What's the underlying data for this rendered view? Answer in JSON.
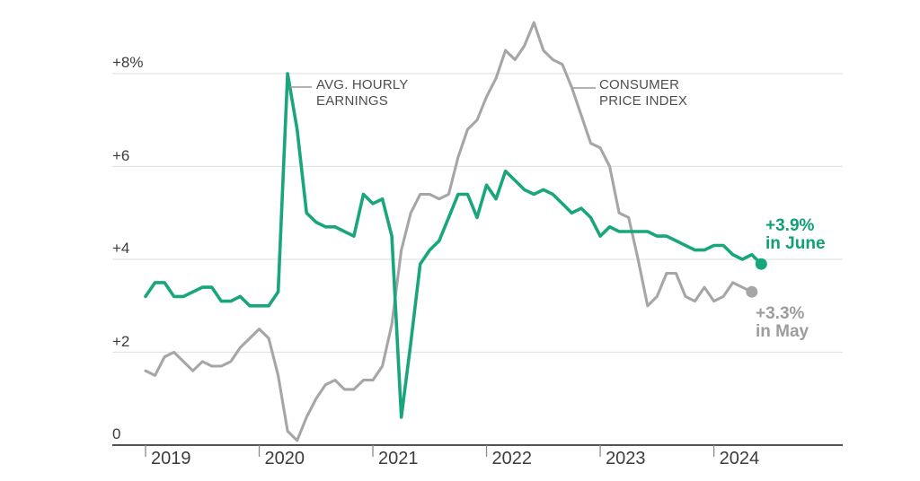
{
  "chart_data": {
    "type": "line",
    "title": "",
    "x_unit": "month",
    "x_start": "2019-01",
    "grid": true,
    "ylim": [
      0,
      9.5
    ],
    "yticks": [
      {
        "value": 8,
        "label": "+8%"
      },
      {
        "value": 6,
        "label": "+6"
      },
      {
        "value": 4,
        "label": "+4"
      },
      {
        "value": 2,
        "label": "+2"
      },
      {
        "value": 0,
        "label": "0"
      }
    ],
    "xticks": [
      "2019",
      "2020",
      "2021",
      "2022",
      "2023",
      "2024"
    ],
    "colors": {
      "background": "#ffffff",
      "grid": "#e3e3e3",
      "axis": "#1a1a1a",
      "tick": "#8a8a8a",
      "tick_text": "#3c3c3c",
      "annotation_text": "#4e4e4e",
      "leader": "#999999"
    },
    "series": [
      {
        "name": "Avg. hourly earnings (YoY %)",
        "label_lines": [
          "AVG. HOURLY",
          "EARNINGS"
        ],
        "line_color": "#1aa67d",
        "label_color": "#0fa077",
        "end_label": [
          "+3.9%",
          "in June"
        ],
        "values": [
          3.2,
          3.5,
          3.5,
          3.2,
          3.2,
          3.3,
          3.4,
          3.4,
          3.1,
          3.1,
          3.2,
          3.0,
          3.0,
          3.0,
          3.3,
          8.0,
          6.8,
          5.0,
          4.8,
          4.7,
          4.7,
          4.6,
          4.5,
          5.4,
          5.2,
          5.3,
          4.5,
          0.6,
          2.2,
          3.9,
          4.2,
          4.4,
          4.9,
          5.4,
          5.4,
          4.9,
          5.6,
          5.3,
          5.9,
          5.7,
          5.5,
          5.4,
          5.5,
          5.4,
          5.2,
          5.0,
          5.1,
          4.9,
          4.5,
          4.7,
          4.6,
          4.6,
          4.6,
          4.6,
          4.5,
          4.5,
          4.4,
          4.3,
          4.2,
          4.2,
          4.3,
          4.3,
          4.1,
          4.0,
          4.1,
          3.9
        ]
      },
      {
        "name": "Consumer Price Index (YoY %)",
        "label_lines": [
          "CONSUMER",
          "PRICE INDEX"
        ],
        "line_color": "#a6a6a6",
        "label_color": "#9d9d9d",
        "end_label": [
          "+3.3%",
          "in May"
        ],
        "values": [
          1.6,
          1.5,
          1.9,
          2.0,
          1.8,
          1.6,
          1.8,
          1.7,
          1.7,
          1.8,
          2.1,
          2.3,
          2.5,
          2.3,
          1.5,
          0.3,
          0.1,
          0.6,
          1.0,
          1.3,
          1.4,
          1.2,
          1.2,
          1.4,
          1.4,
          1.7,
          2.6,
          4.2,
          5.0,
          5.4,
          5.4,
          5.3,
          5.4,
          6.2,
          6.8,
          7.0,
          7.5,
          7.9,
          8.5,
          8.3,
          8.6,
          9.1,
          8.5,
          8.3,
          8.2,
          7.7,
          7.1,
          6.5,
          6.4,
          6.0,
          5.0,
          4.9,
          4.0,
          3.0,
          3.2,
          3.7,
          3.7,
          3.2,
          3.1,
          3.4,
          3.1,
          3.2,
          3.5,
          3.4,
          3.3
        ]
      }
    ]
  }
}
